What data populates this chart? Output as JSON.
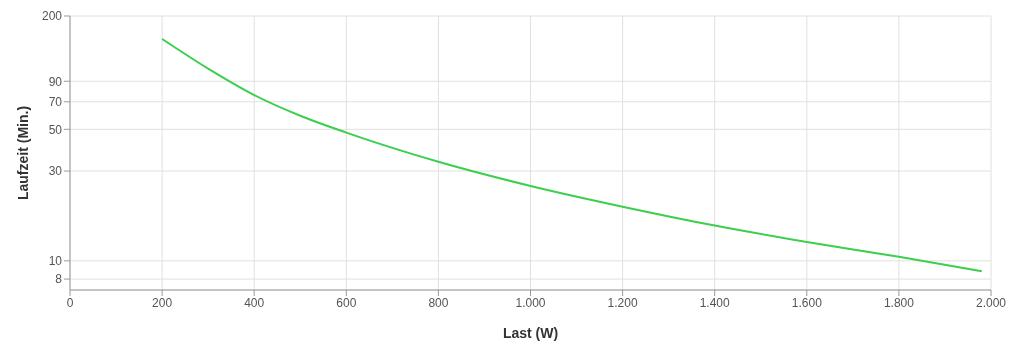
{
  "chart_data": {
    "type": "line",
    "xlabel": "Last (W)",
    "ylabel": "Laufzeit (Min.)",
    "x": [
      200,
      300,
      400,
      500,
      600,
      800,
      1000,
      1200,
      1400,
      1600,
      1800,
      1980
    ],
    "series": [
      {
        "color": "#3ccf4e",
        "values": [
          151,
          105,
          76,
          59,
          48,
          33.6,
          25,
          19.4,
          15.4,
          12.6,
          10.5,
          8.8
        ]
      }
    ],
    "xlim": [
      0,
      2000
    ],
    "xticks": [
      0,
      200,
      400,
      600,
      800,
      {
        "value": 1000,
        "label": "1.000"
      },
      {
        "value": 1200,
        "label": "1.200"
      },
      {
        "value": 1400,
        "label": "1.400"
      },
      {
        "value": 1600,
        "label": "1.600"
      },
      {
        "value": 1800,
        "label": "1.800"
      },
      {
        "value": 2000,
        "label": "2.000"
      }
    ],
    "ylim": [
      7,
      200
    ],
    "yticks": [
      8,
      10,
      30,
      50,
      70,
      90,
      200
    ],
    "log": "y",
    "grid": true,
    "legend": false,
    "marker": "none",
    "line_style": "solid"
  }
}
